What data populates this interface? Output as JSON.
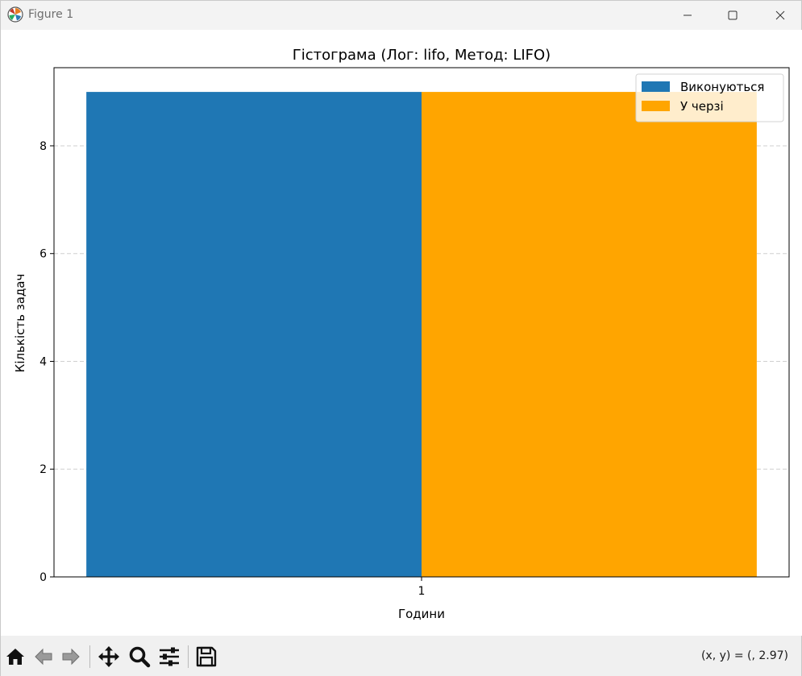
{
  "window": {
    "title": "Figure 1",
    "icon": "matplotlib-icon"
  },
  "chart_data": {
    "type": "bar",
    "title": "Гістограма (Лог: lifo, Метод: LIFO)",
    "xlabel": "Години",
    "ylabel": "Кількість задач",
    "categories": [
      "1"
    ],
    "series": [
      {
        "name": "Виконуються",
        "values": [
          9
        ],
        "color": "#1f77b4"
      },
      {
        "name": "У черзі",
        "values": [
          9
        ],
        "color": "#ffa500"
      }
    ],
    "yticks": [
      "0",
      "2",
      "4",
      "6",
      "8"
    ],
    "ylim": [
      0,
      9.45
    ],
    "grid": "y dashed",
    "legend": "top-right"
  },
  "toolbar": {
    "buttons": [
      {
        "name": "home-icon"
      },
      {
        "name": "back-icon"
      },
      {
        "name": "forward-icon"
      },
      {
        "name": "pan-icon"
      },
      {
        "name": "zoom-icon"
      },
      {
        "name": "configure-subplots-icon"
      },
      {
        "name": "save-icon"
      }
    ],
    "coords": "(x, y) = (, 2.97)"
  }
}
